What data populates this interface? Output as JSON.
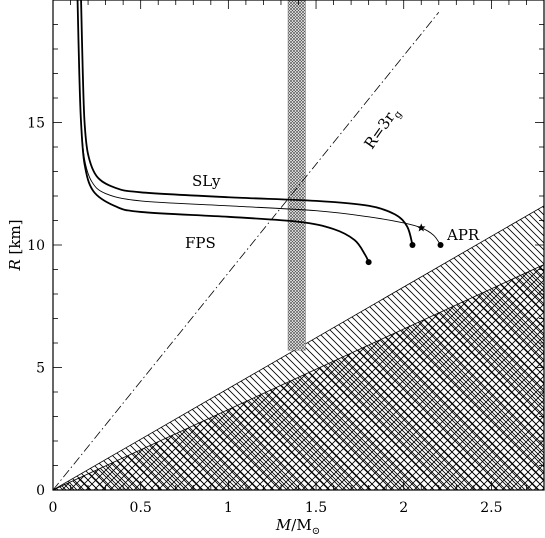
{
  "chart_data": {
    "type": "line",
    "title": "",
    "xlabel_main": "M",
    "xlabel_sep": "/M",
    "xlabel_sub": "⊙",
    "ylabel_main": "R",
    "ylabel_unit": "[km]",
    "xlim": [
      0,
      2.8
    ],
    "ylim": [
      0,
      20
    ],
    "x_ticks": [
      0,
      0.5,
      1,
      1.5,
      2,
      2.5
    ],
    "x_tick_labels": [
      "0",
      "0.5",
      "1",
      "1.5",
      "2",
      "2.5"
    ],
    "y_ticks": [
      0,
      5,
      10,
      15
    ],
    "y_tick_labels": [
      "0",
      "5",
      "10",
      "15"
    ],
    "grid": false,
    "series": [
      {
        "name": "SLy",
        "style": "thick",
        "end_marker": "dot",
        "points": [
          [
            0.16,
            20
          ],
          [
            0.17,
            17
          ],
          [
            0.18,
            15
          ],
          [
            0.2,
            13.7
          ],
          [
            0.25,
            12.8
          ],
          [
            0.35,
            12.35
          ],
          [
            0.5,
            12.15
          ],
          [
            1.0,
            11.95
          ],
          [
            1.5,
            11.8
          ],
          [
            1.8,
            11.6
          ],
          [
            1.95,
            11.25
          ],
          [
            2.02,
            10.75
          ],
          [
            2.05,
            10.0
          ]
        ]
      },
      {
        "name": "APR",
        "style": "thin",
        "end_marker": "dot",
        "star_point": [
          2.1,
          10.7
        ],
        "points": [
          [
            0.14,
            20
          ],
          [
            0.15,
            17
          ],
          [
            0.16,
            15
          ],
          [
            0.18,
            13.5
          ],
          [
            0.22,
            12.6
          ],
          [
            0.3,
            12.1
          ],
          [
            0.5,
            11.8
          ],
          [
            1.0,
            11.6
          ],
          [
            1.5,
            11.4
          ],
          [
            1.8,
            11.15
          ],
          [
            2.0,
            10.9
          ],
          [
            2.1,
            10.7
          ],
          [
            2.17,
            10.4
          ],
          [
            2.21,
            10.0
          ]
        ]
      },
      {
        "name": "FPS",
        "style": "thick",
        "end_marker": "dot",
        "points": [
          [
            0.14,
            20
          ],
          [
            0.15,
            17
          ],
          [
            0.16,
            15
          ],
          [
            0.18,
            13.3
          ],
          [
            0.23,
            12.2
          ],
          [
            0.35,
            11.6
          ],
          [
            0.5,
            11.35
          ],
          [
            1.0,
            11.15
          ],
          [
            1.4,
            10.95
          ],
          [
            1.6,
            10.65
          ],
          [
            1.72,
            10.2
          ],
          [
            1.78,
            9.6
          ],
          [
            1.8,
            9.3
          ]
        ]
      }
    ],
    "reference_line": {
      "label": "R=3r",
      "label_sub": "g",
      "style": "dash-dot",
      "points": [
        [
          0,
          0
        ],
        [
          2.2,
          19.5
        ]
      ]
    },
    "excluded_regions": [
      {
        "hatch": "single-diagonal",
        "boundary_points": [
          [
            0,
            0
          ],
          [
            2.8,
            11.6
          ]
        ]
      },
      {
        "hatch": "cross-hatch",
        "boundary_points": [
          [
            0,
            0
          ],
          [
            2.8,
            9.2
          ]
        ]
      }
    ],
    "observed_mass_band": {
      "x_range": [
        1.34,
        1.44
      ],
      "y_range": [
        5.7,
        20
      ]
    }
  }
}
